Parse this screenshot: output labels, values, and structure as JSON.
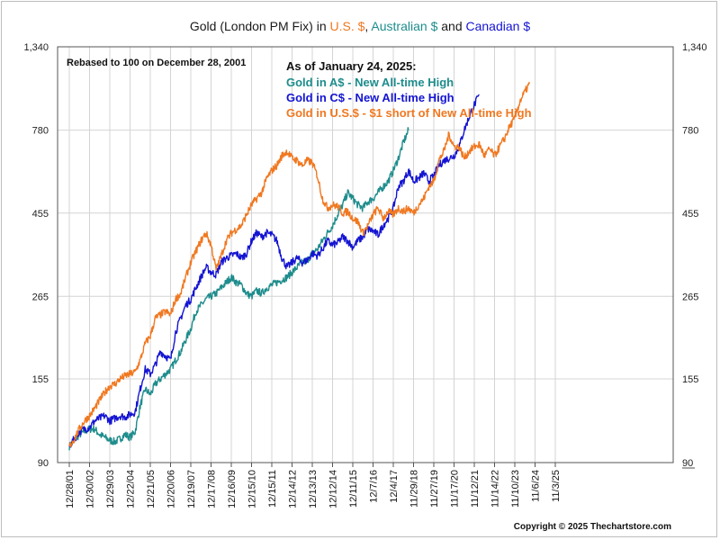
{
  "chart_data": {
    "type": "line",
    "title_parts": [
      {
        "text": "Gold (London PM Fix) in ",
        "color": "#1a1a1a"
      },
      {
        "text": "U.S. $",
        "color": "#f07820"
      },
      {
        "text": ", ",
        "color": "#1a1a1a"
      },
      {
        "text": "Australian $",
        "color": "#1e8c8c"
      },
      {
        "text": " and ",
        "color": "#1a1a1a"
      },
      {
        "text": "Canadian $",
        "color": "#1414d2"
      }
    ],
    "y_scale": "log",
    "ylim": [
      90,
      1340
    ],
    "y_ticks": [
      "90",
      "155",
      "265",
      "455",
      "780",
      "1,340"
    ],
    "x_tick_labels": [
      "12/28/01",
      "12/30/02",
      "12/29/03",
      "12/22/04",
      "12/21/05",
      "12/20/06",
      "12/19/07",
      "12/17/08",
      "12/16/09",
      "12/15/10",
      "12/15/11",
      "12/14/12",
      "12/13/13",
      "12/12/14",
      "12/11/15",
      "12/7/16",
      "12/4/17",
      "11/29/18",
      "11/27/19",
      "11/17/20",
      "11/12/21",
      "11/14/22",
      "11/10/23",
      "11/6/24",
      "11/3/25"
    ],
    "grid": true,
    "legend_position": "top-center",
    "annotations": {
      "rebased_note": "Rebased to 100 on December 28, 2001",
      "as_of": "As of January 24, 2025:",
      "copyright": "Copyright © 2025 Thechartstore.com"
    },
    "series": [
      {
        "name": "Gold in U.S.$ - $1 short of New All-time High",
        "color": "#f07820",
        "points": [
          [
            0,
            100
          ],
          [
            0.25,
            105
          ],
          [
            0.5,
            112
          ],
          [
            0.75,
            118
          ],
          [
            1.0,
            122
          ],
          [
            1.25,
            128
          ],
          [
            1.5,
            135
          ],
          [
            1.75,
            142
          ],
          [
            2.0,
            148
          ],
          [
            2.25,
            150
          ],
          [
            2.5,
            155
          ],
          [
            2.75,
            158
          ],
          [
            3.0,
            160
          ],
          [
            3.25,
            162
          ],
          [
            3.5,
            175
          ],
          [
            3.75,
            195
          ],
          [
            4.0,
            205
          ],
          [
            4.25,
            230
          ],
          [
            4.5,
            235
          ],
          [
            4.75,
            240
          ],
          [
            5.0,
            235
          ],
          [
            5.25,
            260
          ],
          [
            5.5,
            270
          ],
          [
            5.75,
            300
          ],
          [
            6.0,
            330
          ],
          [
            6.25,
            355
          ],
          [
            6.5,
            380
          ],
          [
            6.75,
            400
          ],
          [
            7.0,
            370
          ],
          [
            7.25,
            315
          ],
          [
            7.5,
            345
          ],
          [
            7.75,
            380
          ],
          [
            8.0,
            400
          ],
          [
            8.25,
            410
          ],
          [
            8.5,
            420
          ],
          [
            8.75,
            450
          ],
          [
            9.0,
            480
          ],
          [
            9.25,
            500
          ],
          [
            9.5,
            520
          ],
          [
            9.75,
            570
          ],
          [
            10.0,
            600
          ],
          [
            10.25,
            620
          ],
          [
            10.5,
            660
          ],
          [
            10.75,
            680
          ],
          [
            11.0,
            650
          ],
          [
            11.25,
            640
          ],
          [
            11.5,
            620
          ],
          [
            11.75,
            640
          ],
          [
            12.0,
            630
          ],
          [
            12.25,
            580
          ],
          [
            12.5,
            500
          ],
          [
            12.75,
            470
          ],
          [
            13.0,
            480
          ],
          [
            13.25,
            475
          ],
          [
            13.5,
            455
          ],
          [
            13.75,
            460
          ],
          [
            14.0,
            440
          ],
          [
            14.25,
            430
          ],
          [
            14.5,
            400
          ],
          [
            14.75,
            420
          ],
          [
            15.0,
            450
          ],
          [
            15.25,
            470
          ],
          [
            15.5,
            440
          ],
          [
            15.75,
            460
          ],
          [
            16.0,
            450
          ],
          [
            16.25,
            470
          ],
          [
            16.5,
            460
          ],
          [
            16.75,
            470
          ],
          [
            17.0,
            455
          ],
          [
            17.25,
            480
          ],
          [
            17.5,
            500
          ],
          [
            17.75,
            540
          ],
          [
            18.0,
            560
          ],
          [
            18.25,
            640
          ],
          [
            18.5,
            680
          ],
          [
            18.75,
            760
          ],
          [
            19.0,
            700
          ],
          [
            19.25,
            700
          ],
          [
            19.5,
            650
          ],
          [
            19.75,
            680
          ],
          [
            20.0,
            700
          ],
          [
            20.25,
            710
          ],
          [
            20.5,
            660
          ],
          [
            20.75,
            690
          ],
          [
            21.0,
            660
          ],
          [
            21.25,
            700
          ],
          [
            21.5,
            740
          ],
          [
            21.75,
            800
          ],
          [
            22.0,
            840
          ],
          [
            22.25,
            940
          ],
          [
            22.5,
            1000
          ],
          [
            22.75,
            1060
          ]
        ]
      },
      {
        "name": "Gold in C$ - New All-time High",
        "color": "#1414d2",
        "points": [
          [
            0,
            100
          ],
          [
            0.25,
            105
          ],
          [
            0.5,
            110
          ],
          [
            0.75,
            112
          ],
          [
            1.0,
            113
          ],
          [
            1.25,
            118
          ],
          [
            1.5,
            120
          ],
          [
            1.75,
            122
          ],
          [
            2.0,
            118
          ],
          [
            2.25,
            120
          ],
          [
            2.5,
            122
          ],
          [
            2.75,
            121
          ],
          [
            3.0,
            123
          ],
          [
            3.25,
            125
          ],
          [
            3.5,
            145
          ],
          [
            3.75,
            165
          ],
          [
            4.0,
            160
          ],
          [
            4.25,
            170
          ],
          [
            4.5,
            185
          ],
          [
            4.75,
            180
          ],
          [
            5.0,
            175
          ],
          [
            5.25,
            210
          ],
          [
            5.5,
            230
          ],
          [
            5.75,
            250
          ],
          [
            6.0,
            260
          ],
          [
            6.25,
            280
          ],
          [
            6.5,
            300
          ],
          [
            6.75,
            320
          ],
          [
            7.0,
            310
          ],
          [
            7.25,
            305
          ],
          [
            7.5,
            330
          ],
          [
            7.75,
            340
          ],
          [
            8.0,
            345
          ],
          [
            8.25,
            350
          ],
          [
            8.5,
            340
          ],
          [
            8.75,
            350
          ],
          [
            9.0,
            380
          ],
          [
            9.25,
            400
          ],
          [
            9.5,
            390
          ],
          [
            9.75,
            400
          ],
          [
            10.0,
            395
          ],
          [
            10.25,
            380
          ],
          [
            10.5,
            340
          ],
          [
            10.75,
            320
          ],
          [
            11.0,
            330
          ],
          [
            11.25,
            340
          ],
          [
            11.5,
            330
          ],
          [
            11.75,
            335
          ],
          [
            12.0,
            350
          ],
          [
            12.25,
            345
          ],
          [
            12.5,
            360
          ],
          [
            12.75,
            380
          ],
          [
            13.0,
            370
          ],
          [
            13.25,
            375
          ],
          [
            13.5,
            390
          ],
          [
            13.75,
            380
          ],
          [
            14.0,
            365
          ],
          [
            14.25,
            380
          ],
          [
            14.5,
            390
          ],
          [
            14.75,
            410
          ],
          [
            15.0,
            405
          ],
          [
            15.25,
            395
          ],
          [
            15.5,
            420
          ],
          [
            15.75,
            440
          ],
          [
            16.0,
            470
          ],
          [
            16.25,
            540
          ],
          [
            16.5,
            560
          ],
          [
            16.75,
            600
          ],
          [
            17.0,
            560
          ],
          [
            17.25,
            570
          ],
          [
            17.5,
            590
          ],
          [
            17.75,
            560
          ],
          [
            18.0,
            580
          ],
          [
            18.25,
            620
          ],
          [
            18.5,
            640
          ],
          [
            18.75,
            650
          ],
          [
            19.0,
            660
          ],
          [
            19.25,
            700
          ],
          [
            19.5,
            780
          ],
          [
            19.75,
            850
          ],
          [
            20.0,
            920
          ],
          [
            20.25,
            980
          ]
        ]
      },
      {
        "name": "Gold in A$ - New All-time High",
        "color": "#1e8c8c",
        "points": [
          [
            0,
            100
          ],
          [
            0.25,
            104
          ],
          [
            0.5,
            108
          ],
          [
            0.75,
            110
          ],
          [
            1.0,
            112
          ],
          [
            1.25,
            112
          ],
          [
            1.5,
            108
          ],
          [
            1.75,
            106
          ],
          [
            2.0,
            104
          ],
          [
            2.25,
            103
          ],
          [
            2.5,
            105
          ],
          [
            2.75,
            108
          ],
          [
            3.0,
            106
          ],
          [
            3.25,
            110
          ],
          [
            3.5,
            130
          ],
          [
            3.75,
            145
          ],
          [
            4.0,
            140
          ],
          [
            4.25,
            150
          ],
          [
            4.5,
            155
          ],
          [
            4.75,
            160
          ],
          [
            5.0,
            165
          ],
          [
            5.25,
            175
          ],
          [
            5.5,
            185
          ],
          [
            5.75,
            200
          ],
          [
            6.0,
            215
          ],
          [
            6.25,
            240
          ],
          [
            6.5,
            250
          ],
          [
            6.75,
            260
          ],
          [
            7.0,
            265
          ],
          [
            7.25,
            270
          ],
          [
            7.5,
            280
          ],
          [
            7.75,
            290
          ],
          [
            8.0,
            300
          ],
          [
            8.25,
            290
          ],
          [
            8.5,
            285
          ],
          [
            8.75,
            270
          ],
          [
            9.0,
            265
          ],
          [
            9.25,
            275
          ],
          [
            9.5,
            270
          ],
          [
            9.75,
            280
          ],
          [
            10.0,
            285
          ],
          [
            10.25,
            290
          ],
          [
            10.5,
            295
          ],
          [
            10.75,
            300
          ],
          [
            11.0,
            310
          ],
          [
            11.25,
            320
          ],
          [
            11.5,
            330
          ],
          [
            11.75,
            335
          ],
          [
            12.0,
            350
          ],
          [
            12.25,
            360
          ],
          [
            12.5,
            380
          ],
          [
            12.75,
            400
          ],
          [
            13.0,
            420
          ],
          [
            13.25,
            450
          ],
          [
            13.5,
            480
          ],
          [
            13.75,
            520
          ],
          [
            14.0,
            500
          ],
          [
            14.25,
            480
          ],
          [
            14.5,
            470
          ],
          [
            14.75,
            490
          ],
          [
            15.0,
            500
          ],
          [
            15.25,
            520
          ],
          [
            15.5,
            540
          ],
          [
            15.75,
            560
          ],
          [
            16.0,
            600
          ],
          [
            16.25,
            650
          ],
          [
            16.5,
            720
          ],
          [
            16.75,
            780
          ]
        ]
      }
    ]
  }
}
